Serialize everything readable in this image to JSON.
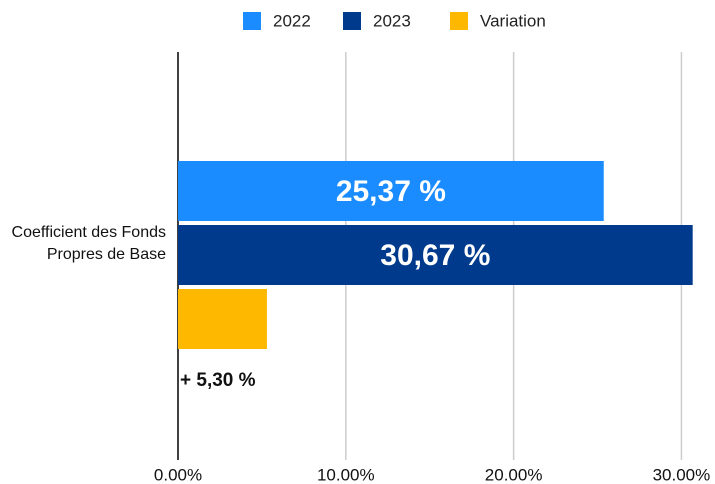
{
  "chart_data": {
    "type": "barh",
    "categories": [
      "Coefficient des Fonds Propres de Base"
    ],
    "series": [
      {
        "name": "2022",
        "color": "#1a8cff",
        "values": [
          25.37
        ],
        "value_labels": [
          "25,37 %"
        ]
      },
      {
        "name": "2023",
        "color": "#003a8c",
        "values": [
          30.67
        ],
        "value_labels": [
          "30,67 %"
        ]
      },
      {
        "name": "Variation",
        "color": "#ffb800",
        "values": [
          5.3
        ],
        "value_labels": [
          "+ 5,30 %"
        ]
      }
    ],
    "xlim": [
      0,
      32
    ],
    "xticks": [
      {
        "value": 0,
        "label": "0.00%"
      },
      {
        "value": 10,
        "label": "10.00%"
      },
      {
        "value": 20,
        "label": "20.00%"
      },
      {
        "value": 30,
        "label": "30.00%"
      }
    ],
    "grid": true,
    "legend": "top"
  }
}
